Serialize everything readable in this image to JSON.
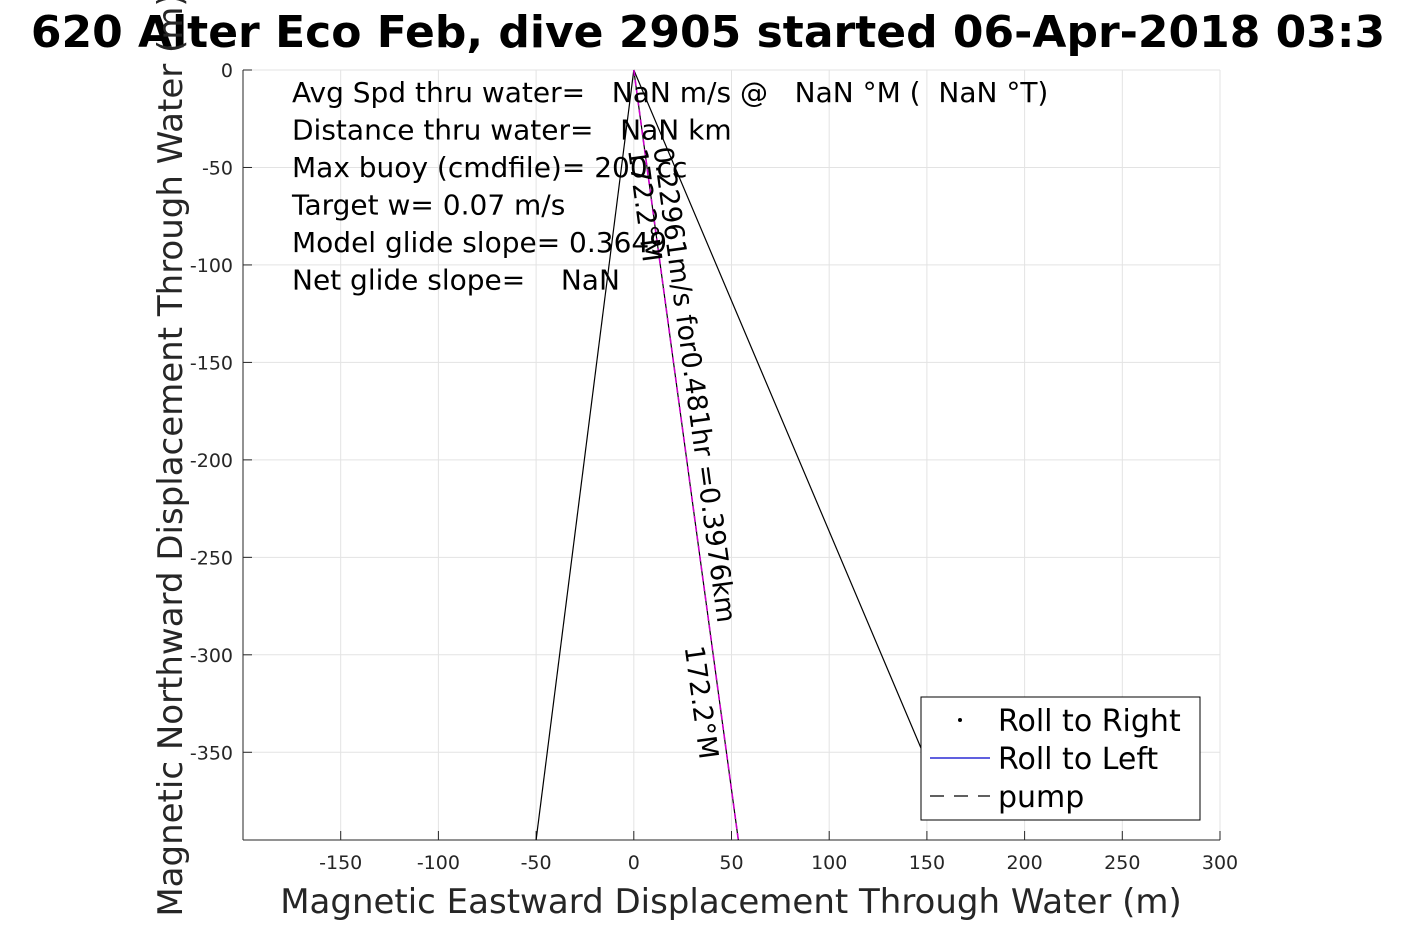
{
  "chart_data": {
    "type": "line",
    "title": "620 Alter Eco Feb, dive 2905 started 06-Apr-2018 03:3",
    "xlabel": "Magnetic Eastward Displacement Through Water (m)",
    "ylabel": "Magnetic Northward Displacement Through Water (m)",
    "xlim": [
      -200,
      300
    ],
    "ylim": [
      -395,
      0
    ],
    "xticks": [
      -150,
      -100,
      -50,
      0,
      50,
      100,
      150,
      200,
      250,
      300
    ],
    "yticks": [
      0,
      -50,
      -100,
      -150,
      -200,
      -250,
      -300,
      -350
    ],
    "grid": true,
    "legend_position": "bottom-right",
    "legend": [
      {
        "label": "Roll to Right",
        "style": "dot",
        "color": "#000000"
      },
      {
        "label": "Roll to Left",
        "style": "solid",
        "color": "#0000cc"
      },
      {
        "label": "pump",
        "style": "dashed",
        "color": "#000000"
      }
    ],
    "series": [
      {
        "style": "solid",
        "color": "#000000",
        "x": [
          0,
          -50
        ],
        "y": [
          0,
          -395
        ]
      },
      {
        "style": "solid",
        "color": "#000000",
        "x": [
          0,
          150
        ],
        "y": [
          0,
          -355
        ]
      },
      {
        "style": "solid",
        "color": "#000000",
        "x": [
          0,
          53.5
        ],
        "y": [
          0,
          -395
        ]
      },
      {
        "style": "dashed",
        "color": "#cc00cc",
        "x": [
          0,
          53.5
        ],
        "y": [
          0,
          -395
        ]
      }
    ],
    "info_text": [
      "Avg Spd thru water=   NaN m/s @   NaN °M (  NaN °T)",
      "Distance thru water=   NaN km",
      "Max buoy (cmdfile)= 200 cc",
      "Target w= 0.07 m/s",
      "Model glide slope= 0.3649",
      "Net glide slope=    NaN"
    ],
    "annotations": [
      {
        "text": "0.22961m/s for0.481hr =0.3976km",
        "x": 10,
        "y": -40,
        "rotation": 82.3
      },
      {
        "text": "172.2°M",
        "x": -3,
        "y": -41,
        "rotation": 82.3
      },
      {
        "text": "172.2°M",
        "x": 26,
        "y": -296,
        "rotation": 82.3
      }
    ]
  }
}
